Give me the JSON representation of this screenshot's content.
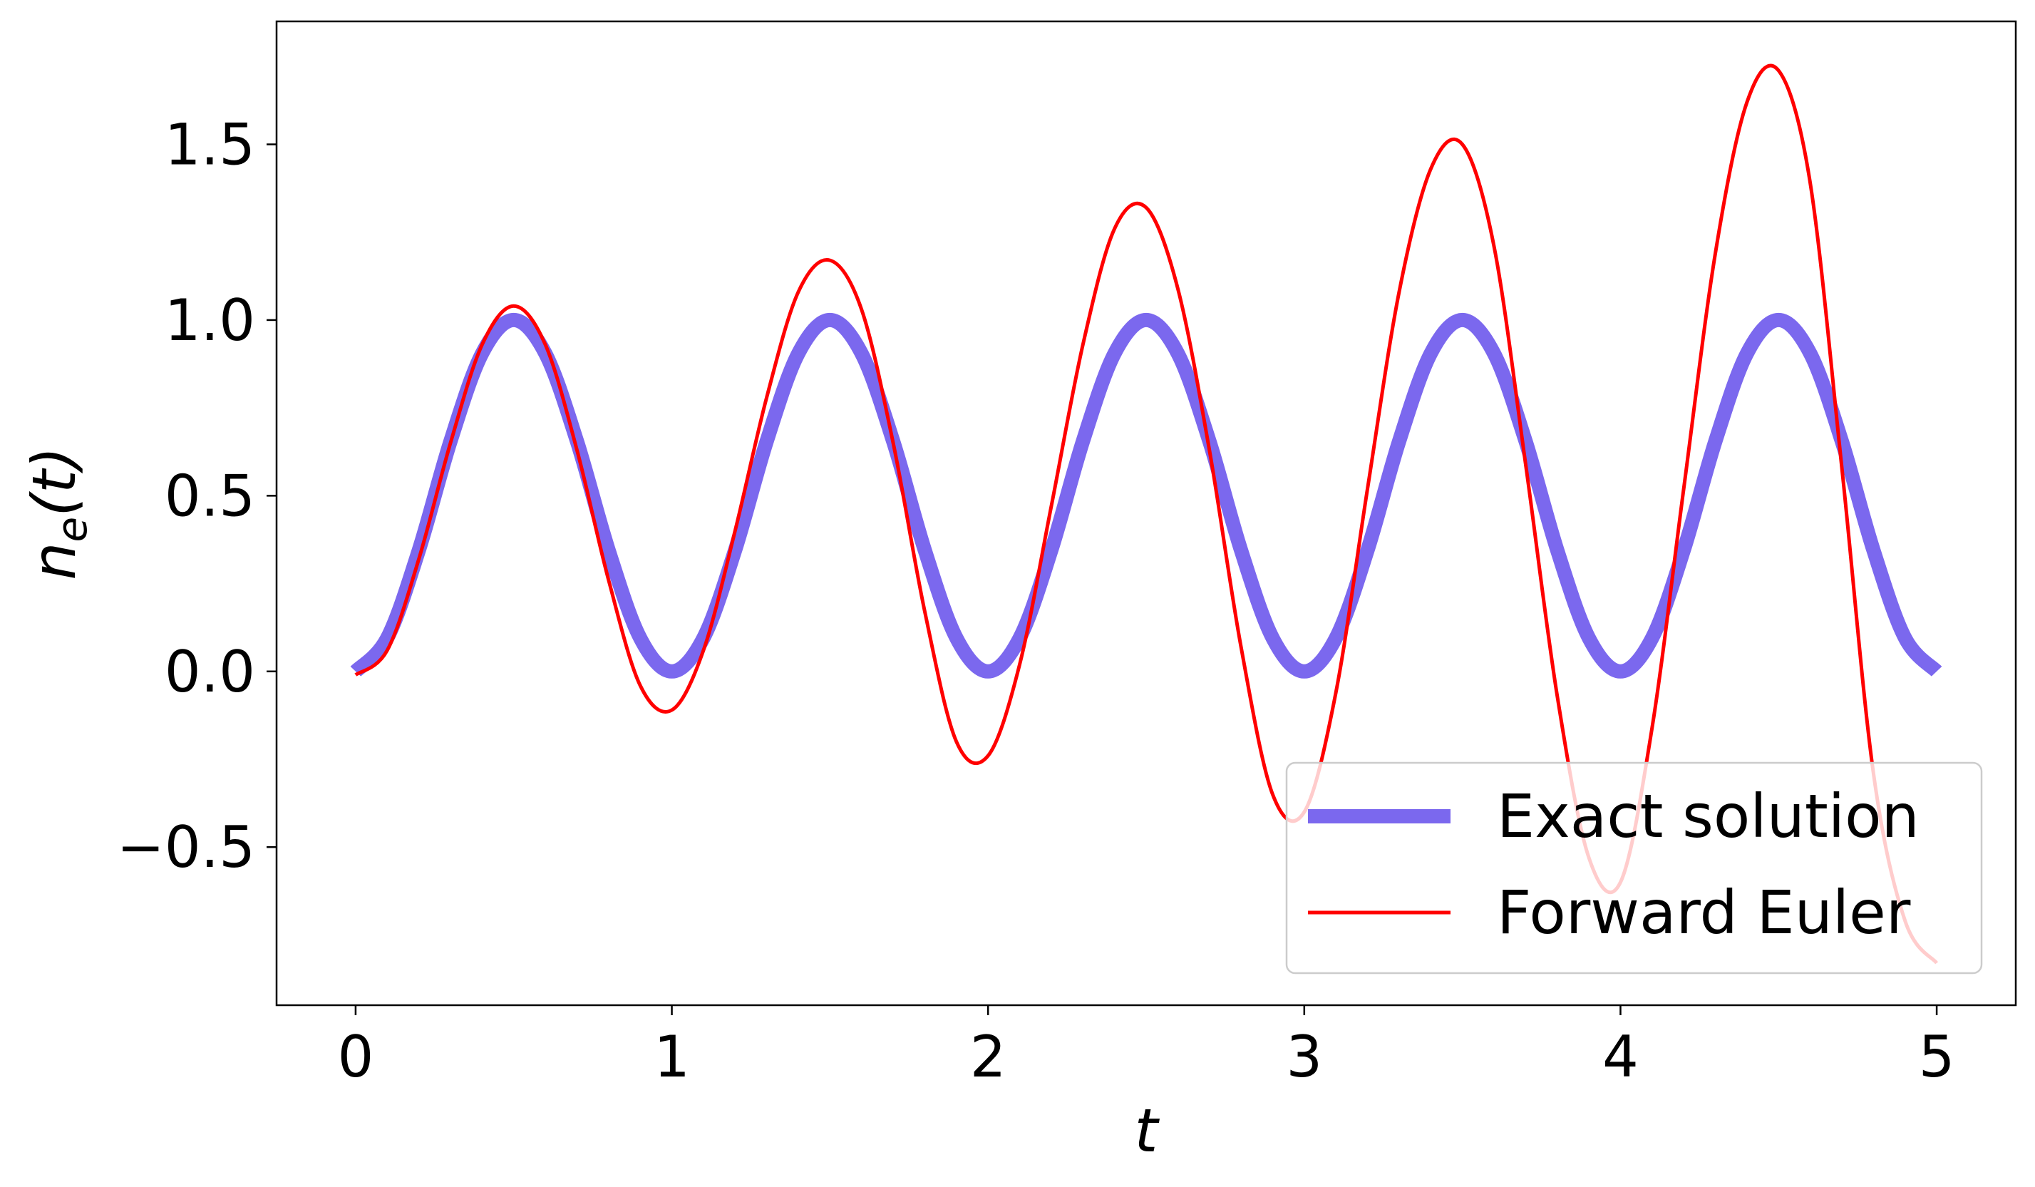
{
  "chart_data": {
    "type": "line",
    "title": "",
    "xlabel": "t",
    "ylabel_main": "n",
    "ylabel_sub": "e",
    "ylabel_tail": "(t)",
    "xlim": [
      -0.25,
      5.25
    ],
    "ylim": [
      -0.95,
      1.85
    ],
    "x_ticks": [
      {
        "value": 0,
        "label": "0"
      },
      {
        "value": 1,
        "label": "1"
      },
      {
        "value": 2,
        "label": "2"
      },
      {
        "value": 3,
        "label": "3"
      },
      {
        "value": 4,
        "label": "4"
      },
      {
        "value": 5,
        "label": "5"
      }
    ],
    "y_ticks": [
      {
        "value": -0.5,
        "label": "−0.5"
      },
      {
        "value": 0.0,
        "label": "0.0"
      },
      {
        "value": 0.5,
        "label": "0.5"
      },
      {
        "value": 1.0,
        "label": "1.0"
      },
      {
        "value": 1.5,
        "label": "1.5"
      }
    ],
    "grid": false,
    "legend_position": "bottom-right",
    "series": [
      {
        "name": "Exact solution",
        "color": "#7B68EE",
        "style": "thick",
        "x": [
          0,
          0.1,
          0.2,
          0.3,
          0.4,
          0.5,
          0.6,
          0.7,
          0.8,
          0.9,
          1.0,
          1.1,
          1.2,
          1.3,
          1.4,
          1.5,
          1.6,
          1.7,
          1.8,
          1.9,
          2.0,
          2.1,
          2.2,
          2.3,
          2.4,
          2.5,
          2.6,
          2.7,
          2.8,
          2.9,
          3.0,
          3.1,
          3.2,
          3.3,
          3.4,
          3.5,
          3.6,
          3.7,
          3.8,
          3.9,
          4.0,
          4.1,
          4.2,
          4.3,
          4.4,
          4.5,
          4.6,
          4.7,
          4.8,
          4.9,
          5.0
        ],
        "y": [
          0,
          0.095,
          0.345,
          0.655,
          0.905,
          1.0,
          0.905,
          0.655,
          0.345,
          0.095,
          0,
          0.095,
          0.345,
          0.655,
          0.905,
          1.0,
          0.905,
          0.655,
          0.345,
          0.095,
          0,
          0.095,
          0.345,
          0.655,
          0.905,
          1.0,
          0.905,
          0.655,
          0.345,
          0.095,
          0,
          0.095,
          0.345,
          0.655,
          0.905,
          1.0,
          0.905,
          0.655,
          0.345,
          0.095,
          0,
          0.095,
          0.345,
          0.655,
          0.905,
          1.0,
          0.905,
          0.655,
          0.345,
          0.095,
          0
        ]
      },
      {
        "name": "Forward Euler",
        "color": "#FF0000",
        "style": "thin",
        "x": [
          0,
          0.1,
          0.2,
          0.3,
          0.4,
          0.5,
          0.6,
          0.7,
          0.8,
          0.9,
          1.0,
          1.1,
          1.2,
          1.3,
          1.4,
          1.5,
          1.6,
          1.7,
          1.8,
          1.9,
          2.0,
          2.1,
          2.2,
          2.3,
          2.4,
          2.5,
          2.6,
          2.7,
          2.8,
          2.9,
          3.0,
          3.1,
          3.2,
          3.3,
          3.4,
          3.5,
          3.6,
          3.7,
          3.8,
          3.9,
          4.0,
          4.1,
          4.2,
          4.3,
          4.4,
          4.5,
          4.6,
          4.7,
          4.8,
          4.9,
          5.0
        ],
        "y": [
          -0.01,
          0.06,
          0.32,
          0.65,
          0.93,
          1.04,
          0.93,
          0.63,
          0.26,
          -0.04,
          -0.11,
          0.06,
          0.4,
          0.78,
          1.08,
          1.17,
          1.03,
          0.65,
          0.17,
          -0.2,
          -0.24,
          0.02,
          0.47,
          0.93,
          1.26,
          1.32,
          1.09,
          0.63,
          0.07,
          -0.35,
          -0.4,
          -0.06,
          0.52,
          1.08,
          1.43,
          1.5,
          1.21,
          0.59,
          -0.07,
          -0.53,
          -0.6,
          -0.16,
          0.52,
          1.19,
          1.62,
          1.71,
          1.39,
          0.58,
          -0.29,
          -0.71,
          -0.83
        ]
      }
    ]
  }
}
